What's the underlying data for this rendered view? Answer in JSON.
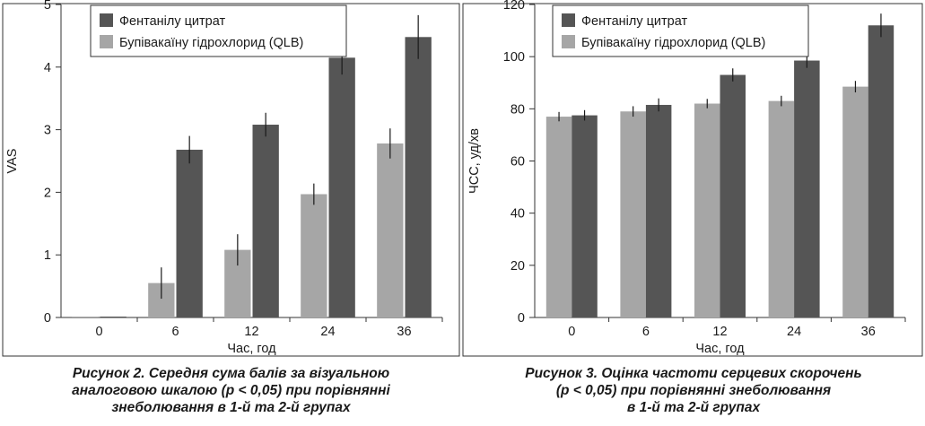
{
  "colors": {
    "fentanyl": "#555555",
    "bupivacaine": "#a6a6a6",
    "errorbar": "#1a1a1a"
  },
  "legend": {
    "series1": "Фентанілу цитрат",
    "series2": "Бупівакаїну гідрохлорид (QLB)"
  },
  "figure2": {
    "caption": [
      "Рисунок 2.  Середня сума балів за візуальною",
      "аналоговою шкалою (p < 0,05) при порівнянні",
      "знеболювання в 1-й та 2-й групах"
    ]
  },
  "figure3": {
    "caption": [
      "Рисунок 3.  Оцінка частоти серцевих скорочень",
      "(p < 0,05) при порівнянні знеболювання",
      "в 1-й та 2-й групах"
    ]
  },
  "chart_data": [
    {
      "type": "bar",
      "xlabel": "Час, год",
      "ylabel": "VAS",
      "ylim": [
        0,
        5
      ],
      "yticks": [
        0,
        1,
        2,
        3,
        4,
        5
      ],
      "categories": [
        "0",
        "6",
        "12",
        "24",
        "36"
      ],
      "legend_position": "top-left",
      "grid": false,
      "series": [
        {
          "name": "Бупівакаїну гідрохлорид (QLB)",
          "values": [
            0,
            0.55,
            1.08,
            1.97,
            2.78
          ],
          "errors": [
            0,
            0.25,
            0.25,
            0.17,
            0.24
          ]
        },
        {
          "name": "Фентанілу цитрат",
          "values": [
            0,
            2.68,
            3.08,
            4.15,
            4.48
          ],
          "errors": [
            0,
            0.22,
            0.19,
            0.27,
            0.35
          ]
        }
      ]
    },
    {
      "type": "bar",
      "xlabel": "Час, год",
      "ylabel": "ЧСС, уд/хв",
      "ylim": [
        0,
        120
      ],
      "yticks": [
        0,
        20,
        40,
        60,
        80,
        100,
        120
      ],
      "categories": [
        "0",
        "6",
        "12",
        "24",
        "36"
      ],
      "legend_position": "top-left",
      "grid": false,
      "series": [
        {
          "name": "Бупівакаїну гідрохлорид (QLB)",
          "values": [
            77,
            79,
            82,
            83,
            88.5
          ],
          "errors": [
            1.8,
            2,
            1.8,
            2,
            2.2
          ]
        },
        {
          "name": "Фентанілу цитрат",
          "values": [
            77.5,
            81.5,
            93,
            98.5,
            112
          ],
          "errors": [
            2,
            2.5,
            2.5,
            2.8,
            4.5
          ]
        }
      ]
    }
  ]
}
